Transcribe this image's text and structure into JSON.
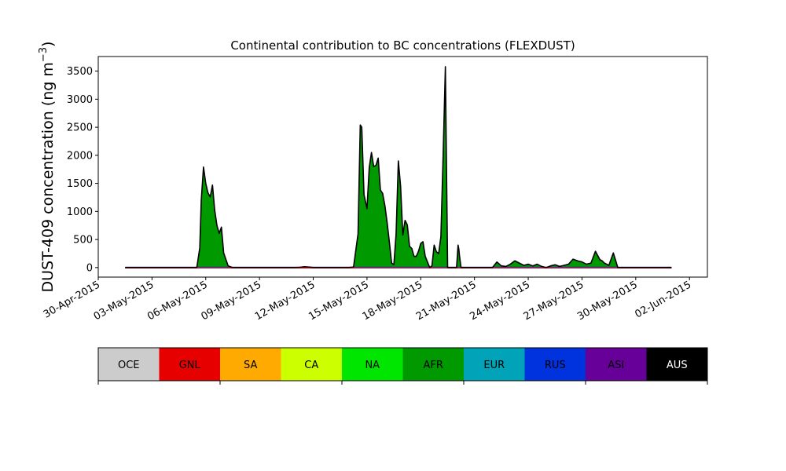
{
  "chart_data": {
    "type": "area",
    "title": "Continental contribution to BC concentrations (FLEXDUST)",
    "ylabel": "DUST-409 concentration (ng m",
    "ylabel_sup": "−3",
    "ylabel_close": ")",
    "xlabel": "",
    "grid": false,
    "ylim": [
      -170,
      3760
    ],
    "xlim": [
      "2015-04-30T00:00",
      "2015-06-03T00:00"
    ],
    "yticks": [
      0,
      500,
      1000,
      1500,
      2000,
      2500,
      3000,
      3500
    ],
    "xticks": [
      {
        "date": "2015-04-30",
        "label": "30-Apr-2015"
      },
      {
        "date": "2015-05-03",
        "label": "03-May-2015"
      },
      {
        "date": "2015-05-06",
        "label": "06-May-2015"
      },
      {
        "date": "2015-05-09",
        "label": "09-May-2015"
      },
      {
        "date": "2015-05-12",
        "label": "12-May-2015"
      },
      {
        "date": "2015-05-15",
        "label": "15-May-2015"
      },
      {
        "date": "2015-05-18",
        "label": "18-May-2015"
      },
      {
        "date": "2015-05-21",
        "label": "21-May-2015"
      },
      {
        "date": "2015-05-24",
        "label": "24-May-2015"
      },
      {
        "date": "2015-05-27",
        "label": "27-May-2015"
      },
      {
        "date": "2015-05-30",
        "label": "30-May-2015"
      },
      {
        "date": "2015-06-02",
        "label": "02-Jun-2015"
      }
    ],
    "legend_position": "bottom",
    "legend": [
      {
        "name": "OCE",
        "color": "#cccccc",
        "text_color": "#000000"
      },
      {
        "name": "GNL",
        "color": "#e60000",
        "text_color": "#000000"
      },
      {
        "name": "SA",
        "color": "#ffaa00",
        "text_color": "#000000"
      },
      {
        "name": "CA",
        "color": "#ccff00",
        "text_color": "#000000"
      },
      {
        "name": "NA",
        "color": "#00e600",
        "text_color": "#000000"
      },
      {
        "name": "AFR",
        "color": "#009900",
        "text_color": "#000000"
      },
      {
        "name": "EUR",
        "color": "#00a3b8",
        "text_color": "#000000"
      },
      {
        "name": "RUS",
        "color": "#0033dd",
        "text_color": "#000000"
      },
      {
        "name": "ASI",
        "color": "#660099",
        "text_color": "#000000"
      },
      {
        "name": "AUS",
        "color": "#000000",
        "text_color": "#ffffff"
      }
    ],
    "series": [
      {
        "name": "AFR",
        "color": "#009900",
        "x": [
          "2015-05-01T12:00",
          "2015-05-05T12:00",
          "2015-05-05T16:00",
          "2015-05-05T18:00",
          "2015-05-05T21:00",
          "2015-05-06T00:00",
          "2015-05-06T03:00",
          "2015-05-06T06:00",
          "2015-05-06T09:00",
          "2015-05-06T12:00",
          "2015-05-06T15:00",
          "2015-05-06T18:00",
          "2015-05-06T21:00",
          "2015-05-07T00:00",
          "2015-05-07T06:00",
          "2015-05-07T12:00",
          "2015-05-11T00:00",
          "2015-05-11T06:00",
          "2015-05-11T12:00",
          "2015-05-11T18:00",
          "2015-05-12T00:00",
          "2015-05-14T00:00",
          "2015-05-14T06:00",
          "2015-05-14T12:00",
          "2015-05-14T15:00",
          "2015-05-14T17:00",
          "2015-05-14T20:00",
          "2015-05-15T00:00",
          "2015-05-15T03:00",
          "2015-05-15T06:00",
          "2015-05-15T09:00",
          "2015-05-15T12:00",
          "2015-05-15T15:00",
          "2015-05-15T18:00",
          "2015-05-15T21:00",
          "2015-05-16T00:00",
          "2015-05-16T03:00",
          "2015-05-16T06:00",
          "2015-05-16T09:00",
          "2015-05-16T12:00",
          "2015-05-16T15:00",
          "2015-05-16T18:00",
          "2015-05-16T21:00",
          "2015-05-17T00:00",
          "2015-05-17T03:00",
          "2015-05-17T06:00",
          "2015-05-17T09:00",
          "2015-05-17T12:00",
          "2015-05-17T15:00",
          "2015-05-17T18:00",
          "2015-05-17T21:00",
          "2015-05-18T00:00",
          "2015-05-18T03:00",
          "2015-05-18T06:00",
          "2015-05-18T09:00",
          "2015-05-18T12:00",
          "2015-05-18T15:00",
          "2015-05-18T18:00",
          "2015-05-18T21:00",
          "2015-05-19T00:00",
          "2015-05-19T03:00",
          "2015-05-19T06:00",
          "2015-05-19T09:00",
          "2015-05-19T12:00",
          "2015-05-19T15:00",
          "2015-05-19T18:00",
          "2015-05-19T21:00",
          "2015-05-20T00:00",
          "2015-05-20T02:00",
          "2015-05-20T03:00",
          "2015-05-20T04:00",
          "2015-05-20T06:00",
          "2015-05-20T09:00",
          "2015-05-20T12:00",
          "2015-05-20T18:00",
          "2015-05-21T00:00",
          "2015-05-21T06:00",
          "2015-05-21T12:00",
          "2015-05-21T15:00",
          "2015-05-21T18:00",
          "2015-05-21T21:00",
          "2015-05-22T00:00",
          "2015-05-22T06:00",
          "2015-05-22T12:00",
          "2015-05-22T18:00",
          "2015-05-23T00:00",
          "2015-05-23T06:00",
          "2015-05-23T12:00",
          "2015-05-23T18:00",
          "2015-05-24T00:00",
          "2015-05-24T06:00",
          "2015-05-24T12:00",
          "2015-05-24T18:00",
          "2015-05-25T00:00",
          "2015-05-25T06:00",
          "2015-05-25T12:00",
          "2015-05-25T18:00",
          "2015-05-26T00:00",
          "2015-05-26T06:00",
          "2015-05-26T12:00",
          "2015-05-26T18:00",
          "2015-05-27T00:00",
          "2015-05-27T06:00",
          "2015-05-27T12:00",
          "2015-05-27T18:00",
          "2015-05-28T00:00",
          "2015-05-28T03:00",
          "2015-05-28T06:00",
          "2015-05-28T12:00",
          "2015-05-28T18:00",
          "2015-05-29T00:00",
          "2015-05-29T06:00",
          "2015-05-29T12:00",
          "2015-05-29T18:00",
          "2015-05-30T00:00",
          "2015-06-01T00:00"
        ],
        "values": [
          0,
          0,
          350,
          1200,
          1790,
          1500,
          1330,
          1260,
          1470,
          1020,
          750,
          610,
          720,
          260,
          30,
          0,
          0,
          5,
          15,
          10,
          0,
          0,
          10,
          600,
          2540,
          2500,
          1300,
          1050,
          1780,
          2050,
          1800,
          1820,
          1950,
          1380,
          1320,
          1100,
          800,
          450,
          80,
          50,
          600,
          1900,
          1450,
          580,
          840,
          760,
          380,
          340,
          200,
          200,
          290,
          430,
          460,
          200,
          100,
          0,
          30,
          400,
          280,
          250,
          550,
          2000,
          3580,
          0,
          0,
          0,
          0,
          0,
          400,
          330,
          200,
          0,
          0,
          0,
          0,
          0,
          0,
          0,
          0,
          0,
          0,
          0,
          100,
          30,
          20,
          60,
          120,
          80,
          40,
          60,
          30,
          60,
          20,
          0,
          30,
          50,
          20,
          40,
          60,
          150,
          120,
          100,
          60,
          80,
          290,
          140,
          120,
          80,
          40,
          260,
          0,
          0,
          0,
          0,
          0,
          0
        ]
      }
    ]
  }
}
